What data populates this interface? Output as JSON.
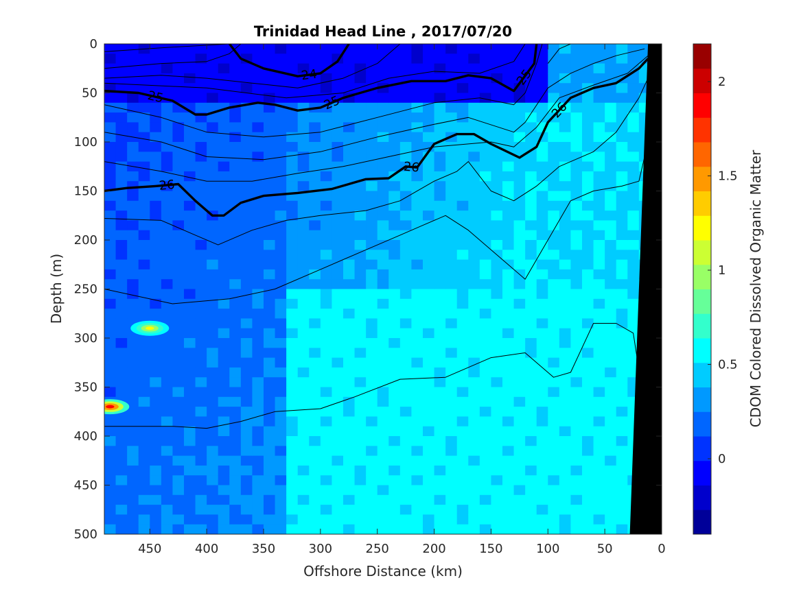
{
  "chart_data": {
    "type": "heatmap",
    "title": "Trinidad Head Line , 2017/07/20",
    "xlabel": "Offshore Distance (km)",
    "ylabel": "Depth (m)",
    "xlim": [
      490,
      0
    ],
    "ylim": [
      500,
      0
    ],
    "x_ticks": [
      "450",
      "400",
      "350",
      "300",
      "250",
      "200",
      "150",
      "100",
      "50",
      "0"
    ],
    "y_ticks": [
      "0",
      "50",
      "100",
      "150",
      "200",
      "250",
      "300",
      "350",
      "400",
      "450",
      "500"
    ],
    "colorbar": {
      "label": "CDOM Colored Dissolved Organic Matter",
      "range": [
        -0.4,
        2.2
      ],
      "ticks": [
        "0",
        "0.5",
        "1",
        "1.5",
        "2"
      ],
      "colormap": "jet"
    },
    "field_regions": [
      {
        "description": "deep blue surface layer offshore",
        "x_range": [
          490,
          100
        ],
        "depth_range": [
          0,
          60
        ],
        "value": -0.1
      },
      {
        "description": "blue mid-depth offshore",
        "x_range": [
          490,
          330
        ],
        "depth_range": [
          60,
          500
        ],
        "value": 0.15
      },
      {
        "description": "cyan deep water nearshore",
        "x_range": [
          330,
          25
        ],
        "depth_range": [
          250,
          500
        ],
        "value": 0.55
      },
      {
        "description": "cyan shelf water",
        "x_range": [
          110,
          10
        ],
        "depth_range": [
          60,
          250
        ],
        "value": 0.5
      }
    ],
    "hotspots": [
      {
        "x": 450,
        "depth": 290,
        "value": 1.2
      },
      {
        "x": 485,
        "depth": 370,
        "value": 1.9
      }
    ],
    "contours": [
      {
        "level": "",
        "bold": false,
        "points": [
          [
            490,
            8
          ],
          [
            440,
            4
          ],
          [
            380,
            0
          ]
        ]
      },
      {
        "level": "",
        "bold": false,
        "points": [
          [
            490,
            25
          ],
          [
            440,
            20
          ],
          [
            400,
            18
          ],
          [
            380,
            10
          ],
          [
            370,
            0
          ]
        ]
      },
      {
        "level": "24",
        "bold": true,
        "points": [
          [
            380,
            0
          ],
          [
            370,
            15
          ],
          [
            350,
            25
          ],
          [
            320,
            33
          ],
          [
            300,
            30
          ],
          [
            285,
            18
          ],
          [
            275,
            0
          ]
        ]
      },
      {
        "level": "",
        "bold": false,
        "points": [
          [
            490,
            35
          ],
          [
            440,
            32
          ],
          [
            400,
            35
          ],
          [
            360,
            40
          ],
          [
            320,
            45
          ],
          [
            280,
            35
          ],
          [
            250,
            20
          ],
          [
            230,
            0
          ]
        ]
      },
      {
        "level": "",
        "bold": false,
        "points": [
          [
            490,
            40
          ],
          [
            400,
            45
          ],
          [
            330,
            55
          ],
          [
            280,
            50
          ],
          [
            240,
            35
          ],
          [
            200,
            28
          ],
          [
            160,
            30
          ],
          [
            130,
            18
          ],
          [
            120,
            0
          ]
        ]
      },
      {
        "level": "25",
        "bold": true,
        "points": [
          [
            490,
            48
          ],
          [
            460,
            50
          ],
          [
            430,
            58
          ],
          [
            410,
            72
          ],
          [
            400,
            72
          ],
          [
            380,
            65
          ],
          [
            355,
            60
          ],
          [
            340,
            62
          ],
          [
            320,
            68
          ],
          [
            300,
            65
          ],
          [
            280,
            55
          ],
          [
            250,
            45
          ],
          [
            220,
            38
          ],
          [
            190,
            38
          ],
          [
            170,
            32
          ],
          [
            150,
            35
          ],
          [
            130,
            48
          ],
          [
            112,
            20
          ],
          [
            110,
            0
          ]
        ]
      },
      {
        "level": "",
        "bold": false,
        "points": [
          [
            490,
            62
          ],
          [
            440,
            75
          ],
          [
            400,
            90
          ],
          [
            350,
            95
          ],
          [
            300,
            90
          ],
          [
            250,
            75
          ],
          [
            200,
            60
          ],
          [
            160,
            55
          ],
          [
            130,
            62
          ],
          [
            120,
            50
          ],
          [
            110,
            20
          ],
          [
            105,
            0
          ]
        ]
      },
      {
        "level": "",
        "bold": false,
        "points": [
          [
            100,
            20
          ],
          [
            90,
            5
          ],
          [
            80,
            0
          ]
        ]
      },
      {
        "level": "",
        "bold": false,
        "points": [
          [
            490,
            90
          ],
          [
            440,
            100
          ],
          [
            400,
            115
          ],
          [
            350,
            118
          ],
          [
            300,
            110
          ],
          [
            250,
            95
          ],
          [
            200,
            82
          ],
          [
            170,
            75
          ],
          [
            130,
            90
          ],
          [
            120,
            80
          ],
          [
            100,
            45
          ],
          [
            80,
            30
          ],
          [
            60,
            20
          ],
          [
            40,
            12
          ],
          [
            15,
            5
          ]
        ]
      },
      {
        "level": "",
        "bold": false,
        "points": [
          [
            490,
            120
          ],
          [
            440,
            130
          ],
          [
            400,
            140
          ],
          [
            360,
            140
          ],
          [
            320,
            132
          ],
          [
            280,
            125
          ],
          [
            240,
            115
          ],
          [
            200,
            105
          ],
          [
            150,
            100
          ],
          [
            130,
            105
          ],
          [
            110,
            85
          ],
          [
            90,
            55
          ],
          [
            60,
            42
          ],
          [
            30,
            30
          ],
          [
            12,
            12
          ]
        ]
      },
      {
        "level": "26",
        "bold": true,
        "points": [
          [
            490,
            150
          ],
          [
            470,
            147
          ],
          [
            445,
            145
          ],
          [
            425,
            143
          ],
          [
            410,
            160
          ],
          [
            395,
            175
          ],
          [
            385,
            175
          ],
          [
            370,
            162
          ],
          [
            350,
            155
          ],
          [
            320,
            152
          ],
          [
            290,
            148
          ],
          [
            260,
            138
          ],
          [
            240,
            137
          ],
          [
            225,
            125
          ],
          [
            215,
            126
          ],
          [
            200,
            102
          ],
          [
            180,
            92
          ],
          [
            165,
            92
          ],
          [
            150,
            102
          ],
          [
            125,
            116
          ],
          [
            110,
            105
          ],
          [
            100,
            80
          ],
          [
            80,
            55
          ],
          [
            60,
            45
          ],
          [
            40,
            40
          ],
          [
            20,
            25
          ],
          [
            12,
            15
          ]
        ]
      },
      {
        "level": "",
        "bold": false,
        "points": [
          [
            490,
            178
          ],
          [
            440,
            180
          ],
          [
            410,
            195
          ],
          [
            390,
            205
          ],
          [
            360,
            190
          ],
          [
            330,
            180
          ],
          [
            300,
            175
          ],
          [
            260,
            170
          ],
          [
            230,
            160
          ],
          [
            200,
            140
          ],
          [
            180,
            130
          ],
          [
            170,
            120
          ],
          [
            150,
            150
          ],
          [
            130,
            160
          ],
          [
            110,
            145
          ],
          [
            90,
            125
          ],
          [
            60,
            110
          ],
          [
            40,
            90
          ],
          [
            20,
            55
          ],
          [
            10,
            30
          ]
        ]
      },
      {
        "level": "",
        "bold": false,
        "points": [
          [
            490,
            250
          ],
          [
            430,
            265
          ],
          [
            380,
            260
          ],
          [
            340,
            250
          ],
          [
            300,
            230
          ],
          [
            260,
            210
          ],
          [
            230,
            195
          ],
          [
            210,
            185
          ],
          [
            190,
            175
          ],
          [
            170,
            190
          ],
          [
            140,
            220
          ],
          [
            120,
            240
          ],
          [
            100,
            200
          ],
          [
            80,
            160
          ],
          [
            60,
            150
          ],
          [
            35,
            145
          ],
          [
            20,
            140
          ],
          [
            10,
            90
          ]
        ]
      },
      {
        "level": "",
        "bold": false,
        "points": [
          [
            490,
            390
          ],
          [
            430,
            390
          ],
          [
            400,
            392
          ],
          [
            370,
            385
          ],
          [
            340,
            375
          ],
          [
            300,
            372
          ],
          [
            270,
            360
          ],
          [
            230,
            342
          ],
          [
            190,
            340
          ],
          [
            150,
            320
          ],
          [
            120,
            315
          ],
          [
            95,
            340
          ],
          [
            80,
            335
          ],
          [
            60,
            285
          ],
          [
            40,
            285
          ],
          [
            25,
            295
          ],
          [
            15,
            370
          ]
        ]
      }
    ]
  }
}
